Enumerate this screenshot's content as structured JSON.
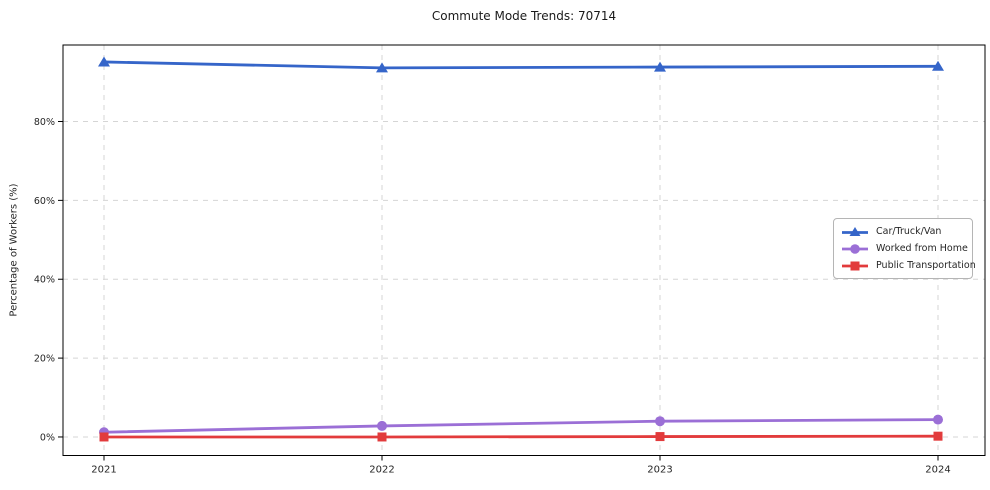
{
  "chart_data": {
    "type": "line",
    "title": "Commute Mode Trends: 70714",
    "xlabel": "",
    "ylabel": "Percentage of Workers (%)",
    "categories": [
      "2021",
      "2022",
      "2023",
      "2024"
    ],
    "series": [
      {
        "name": "Car/Truck/Van",
        "marker": "triangle",
        "color": "#3565c9",
        "values": [
          95.1,
          93.6,
          93.8,
          94.0
        ]
      },
      {
        "name": "Worked from Home",
        "marker": "circle",
        "color": "#9b6fd6",
        "values": [
          1.2,
          2.8,
          4.0,
          4.4
        ]
      },
      {
        "name": "Public Transportation",
        "marker": "square",
        "color": "#e23b3c",
        "values": [
          0.0,
          0.0,
          0.1,
          0.2
        ]
      }
    ],
    "yticks": [
      0,
      20,
      40,
      60,
      80
    ],
    "ytick_labels": [
      "0%",
      "20%",
      "40%",
      "60%",
      "80%"
    ],
    "ylim": [
      -4.7,
      99.4
    ],
    "grid": true,
    "grid_style": "dashed",
    "legend_position": "center right"
  }
}
